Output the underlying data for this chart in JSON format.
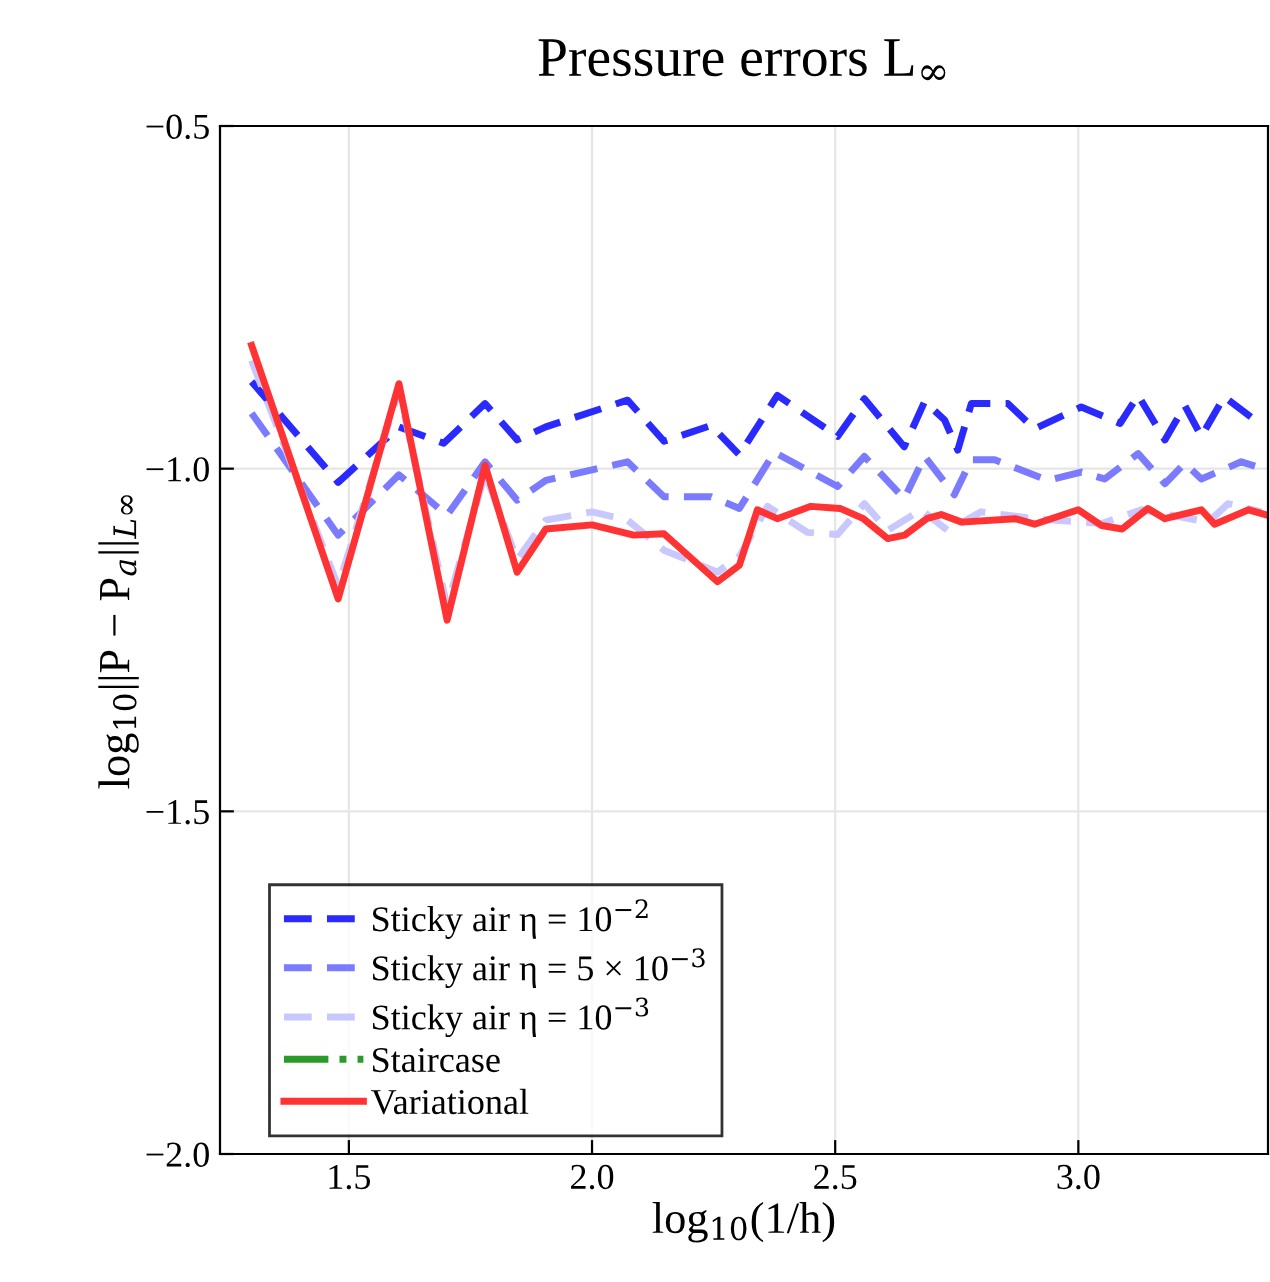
{
  "chart_data": {
    "type": "line",
    "title": "Pressure errors L$_{∞}$",
    "xlabel": "log$_{10}$(1/h)",
    "ylabel": "log$_{10}$||P − P$_{a}$||$_{L∞}$",
    "xlim": [
      1.235,
      3.39
    ],
    "ylim": [
      -2.0,
      -0.5
    ],
    "xticks": [
      1.5,
      {
        "value": 2.0,
        "label": "2.0"
      },
      2.5,
      {
        "value": 3.0,
        "label": "3.0"
      }
    ],
    "yticks": [
      {
        "value": -2.0,
        "label": "−2.0"
      },
      {
        "value": -1.5,
        "label": "−1.5"
      },
      {
        "value": -1.0,
        "label": "−1.0"
      },
      {
        "value": -0.5,
        "label": "−0.5"
      }
    ],
    "grid": true,
    "legend": "bottom left",
    "series": [
      {
        "name": "Sticky air η = 10$^{−2}$",
        "color": "#2a2aff",
        "line_style": "dashed",
        "x": [
          1.3,
          1.478,
          1.603,
          1.695,
          1.78,
          1.846,
          1.905,
          2.073,
          2.148,
          2.245,
          2.303,
          2.381,
          2.505,
          2.56,
          2.642,
          2.684,
          2.725,
          2.752,
          2.78,
          2.855,
          2.91,
          3.006,
          3.086,
          3.123,
          3.178,
          3.219,
          3.253,
          3.3,
          3.363,
          3.376
        ],
        "values": [
          -0.873,
          -1.02,
          -0.939,
          -0.963,
          -0.905,
          -0.958,
          -0.939,
          -0.9,
          -0.96,
          -0.937,
          -0.98,
          -0.893,
          -0.953,
          -0.898,
          -0.968,
          -0.902,
          -0.929,
          -0.973,
          -0.905,
          -0.905,
          -0.942,
          -0.91,
          -0.934,
          -0.893,
          -0.958,
          -0.908,
          -0.953,
          -0.895,
          -0.929,
          -0.924
        ]
      },
      {
        "name": "Sticky air η = 5 × 10$^{−3}$",
        "color": "#7b7bff",
        "line_style": "dashed",
        "x": [
          1.3,
          1.478,
          1.603,
          1.702,
          1.78,
          1.846,
          1.905,
          2.073,
          2.148,
          2.245,
          2.303,
          2.375,
          2.505,
          2.56,
          2.642,
          2.684,
          2.745,
          2.78,
          2.828,
          2.937,
          3.006,
          3.054,
          3.123,
          3.178,
          3.219,
          3.253,
          3.335,
          3.376
        ],
        "values": [
          -0.919,
          -1.097,
          -1.009,
          -1.068,
          -0.99,
          -1.046,
          -1.017,
          -0.99,
          -1.041,
          -1.041,
          -1.058,
          -0.976,
          -1.026,
          -0.982,
          -1.044,
          -0.982,
          -1.038,
          -0.987,
          -0.987,
          -1.017,
          -1.005,
          -1.015,
          -0.978,
          -1.022,
          -0.992,
          -1.015,
          -0.99,
          -0.999
        ]
      },
      {
        "name": "Sticky air η = 10$^{−3}$",
        "color": "#c8c8ff",
        "line_style": "dashed",
        "x": [
          1.3,
          1.478,
          1.603,
          1.702,
          1.78,
          1.846,
          1.905,
          2.0,
          2.073,
          2.148,
          2.258,
          2.303,
          2.361,
          2.443,
          2.505,
          2.56,
          2.608,
          2.677,
          2.731,
          2.8,
          2.91,
          3.048,
          3.13,
          3.267,
          3.308,
          3.376
        ],
        "values": [
          -0.842,
          -1.172,
          -0.885,
          -1.201,
          -1.007,
          -1.133,
          -1.075,
          -1.063,
          -1.075,
          -1.119,
          -1.151,
          -1.128,
          -1.055,
          -1.093,
          -1.096,
          -1.051,
          -1.09,
          -1.06,
          -1.09,
          -1.063,
          -1.073,
          -1.08,
          -1.06,
          -1.078,
          -1.051,
          -1.063
        ]
      },
      {
        "name": "Staircase",
        "color": "#2a9a2a",
        "line_style": "dashdot"
      },
      {
        "name": "Variational",
        "color": "#ff3333",
        "line_style": "solid",
        "x": [
          1.3,
          1.478,
          1.603,
          1.702,
          1.78,
          1.846,
          1.905,
          2.0,
          2.086,
          2.148,
          2.258,
          2.303,
          2.34,
          2.381,
          2.45,
          2.51,
          2.558,
          2.608,
          2.643,
          2.688,
          2.718,
          2.76,
          2.87,
          2.91,
          3.0,
          3.048,
          3.09,
          3.143,
          3.178,
          3.212,
          3.253,
          3.28,
          3.35,
          3.39
        ],
        "values": [
          -0.82,
          -1.19,
          -0.876,
          -1.221,
          -0.995,
          -1.151,
          -1.088,
          -1.082,
          -1.097,
          -1.095,
          -1.165,
          -1.141,
          -1.06,
          -1.073,
          -1.055,
          -1.058,
          -1.073,
          -1.102,
          -1.097,
          -1.073,
          -1.067,
          -1.078,
          -1.073,
          -1.081,
          -1.06,
          -1.083,
          -1.088,
          -1.058,
          -1.073,
          -1.067,
          -1.06,
          -1.081,
          -1.06,
          -1.068
        ]
      }
    ]
  }
}
